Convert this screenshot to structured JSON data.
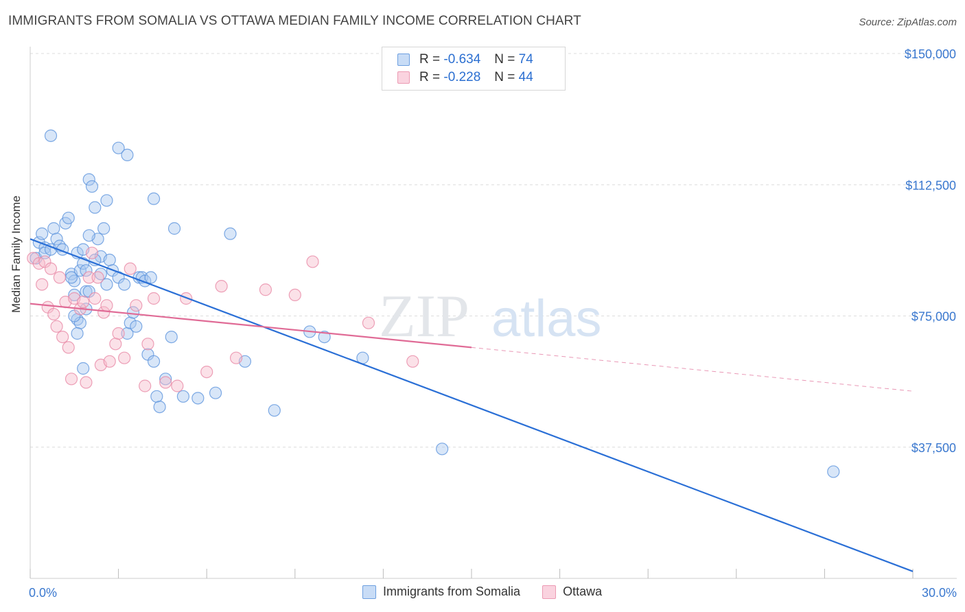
{
  "title": "IMMIGRANTS FROM SOMALIA VS OTTAWA MEDIAN FAMILY INCOME CORRELATION CHART",
  "source": "Source: ZipAtlas.com",
  "watermark": {
    "zip": "ZIP",
    "atlas": "atlas"
  },
  "legend": {
    "rows": [
      {
        "r_label": "R =",
        "r_value": "-0.634",
        "n_label": "N =",
        "n_value": "74",
        "color": "#a9c8f0",
        "stroke": "#5e95dd"
      },
      {
        "r_label": "R =",
        "r_value": "-0.228",
        "n_label": "N =",
        "n_value": "44",
        "color": "#f7bccd",
        "stroke": "#e88aa6"
      }
    ]
  },
  "bottom_legend": {
    "items": [
      {
        "label": "Immigrants from Somalia",
        "color": "#a9c8f0",
        "stroke": "#5e95dd"
      },
      {
        "label": "Ottawa",
        "color": "#f7bccd",
        "stroke": "#e88aa6"
      }
    ]
  },
  "chart_data": {
    "type": "scatter",
    "title": "IMMIGRANTS FROM SOMALIA VS OTTAWA MEDIAN FAMILY INCOME CORRELATION CHART",
    "xlabel": "",
    "ylabel": "Median Family Income",
    "xlim": [
      0,
      30
    ],
    "ylim": [
      0,
      150000
    ],
    "x_tick_labels": [
      "0.0%",
      "30.0%"
    ],
    "y_ticks": [
      37500,
      75000,
      112500,
      150000
    ],
    "y_tick_labels": [
      "$37,500",
      "$75,000",
      "$112,500",
      "$150,000"
    ],
    "grid": true,
    "series": [
      {
        "name": "Immigrants from Somalia",
        "color": "#5e95dd",
        "fill": "#a9c8f0",
        "points": [
          [
            0.2,
            91500
          ],
          [
            0.3,
            96000
          ],
          [
            0.4,
            98500
          ],
          [
            0.5,
            94500
          ],
          [
            0.5,
            93000
          ],
          [
            0.7,
            126500
          ],
          [
            0.7,
            94000
          ],
          [
            0.8,
            100000
          ],
          [
            0.9,
            97000
          ],
          [
            1.0,
            95000
          ],
          [
            1.1,
            94000
          ],
          [
            1.2,
            101500
          ],
          [
            1.3,
            103000
          ],
          [
            1.4,
            87000
          ],
          [
            1.5,
            85000
          ],
          [
            1.5,
            81000
          ],
          [
            1.6,
            93000
          ],
          [
            1.7,
            88000
          ],
          [
            1.8,
            94000
          ],
          [
            1.9,
            82000
          ],
          [
            2.0,
            114000
          ],
          [
            2.1,
            112000
          ],
          [
            2.2,
            106000
          ],
          [
            2.3,
            97000
          ],
          [
            2.4,
            92000
          ],
          [
            2.5,
            100000
          ],
          [
            1.9,
            77000
          ],
          [
            1.4,
            86000
          ],
          [
            1.6,
            74000
          ],
          [
            1.8,
            60000
          ],
          [
            1.7,
            73000
          ],
          [
            1.8,
            90000
          ],
          [
            1.9,
            88000
          ],
          [
            2.0,
            98000
          ],
          [
            2.0,
            82000
          ],
          [
            1.5,
            75000
          ],
          [
            1.6,
            70000
          ],
          [
            2.2,
            91000
          ],
          [
            2.4,
            87000
          ],
          [
            2.6,
            84000
          ],
          [
            2.7,
            91000
          ],
          [
            2.8,
            88000
          ],
          [
            3.0,
            86000
          ],
          [
            3.2,
            84000
          ],
          [
            3.3,
            70000
          ],
          [
            3.4,
            73000
          ],
          [
            3.5,
            76000
          ],
          [
            3.6,
            72000
          ],
          [
            3.7,
            86000
          ],
          [
            3.8,
            86000
          ],
          [
            3.9,
            85000
          ],
          [
            4.0,
            64000
          ],
          [
            4.1,
            86000
          ],
          [
            4.2,
            62000
          ],
          [
            4.3,
            52000
          ],
          [
            4.4,
            49000
          ],
          [
            4.6,
            57000
          ],
          [
            4.8,
            69000
          ],
          [
            5.2,
            52000
          ],
          [
            5.7,
            51500
          ],
          [
            6.3,
            53000
          ],
          [
            6.8,
            98500
          ],
          [
            7.3,
            62000
          ],
          [
            8.3,
            48000
          ],
          [
            9.5,
            70500
          ],
          [
            10.0,
            69000
          ],
          [
            11.3,
            63000
          ],
          [
            14.0,
            37000
          ],
          [
            27.3,
            30500
          ],
          [
            2.6,
            108000
          ],
          [
            3.0,
            123000
          ],
          [
            3.3,
            121000
          ],
          [
            4.2,
            108500
          ],
          [
            4.9,
            100000
          ]
        ]
      },
      {
        "name": "Ottawa",
        "color": "#e88aa6",
        "fill": "#f7bccd",
        "points": [
          [
            0.1,
            91500
          ],
          [
            0.3,
            90000
          ],
          [
            0.4,
            84000
          ],
          [
            0.5,
            90500
          ],
          [
            0.6,
            77500
          ],
          [
            0.7,
            88500
          ],
          [
            0.8,
            75500
          ],
          [
            0.9,
            72000
          ],
          [
            1.0,
            86000
          ],
          [
            1.1,
            69000
          ],
          [
            1.2,
            79000
          ],
          [
            1.3,
            66000
          ],
          [
            1.4,
            57000
          ],
          [
            1.5,
            80000
          ],
          [
            1.7,
            77000
          ],
          [
            1.8,
            79000
          ],
          [
            1.9,
            56000
          ],
          [
            2.0,
            86000
          ],
          [
            2.1,
            93000
          ],
          [
            2.2,
            80000
          ],
          [
            2.3,
            86000
          ],
          [
            2.4,
            61000
          ],
          [
            2.5,
            76000
          ],
          [
            2.6,
            78000
          ],
          [
            2.7,
            62000
          ],
          [
            2.9,
            67000
          ],
          [
            3.0,
            70000
          ],
          [
            3.2,
            63000
          ],
          [
            3.4,
            88500
          ],
          [
            3.6,
            78000
          ],
          [
            4.0,
            67000
          ],
          [
            4.2,
            80000
          ],
          [
            4.6,
            56000
          ],
          [
            5.0,
            55000
          ],
          [
            5.3,
            80000
          ],
          [
            6.0,
            59000
          ],
          [
            6.5,
            83500
          ],
          [
            7.0,
            63000
          ],
          [
            8.0,
            82500
          ],
          [
            9.0,
            81000
          ],
          [
            9.6,
            90500
          ],
          [
            11.5,
            73000
          ],
          [
            13.0,
            62000
          ],
          [
            3.9,
            55000
          ]
        ]
      }
    ],
    "trend_lines": [
      {
        "series": "Immigrants from Somalia",
        "x": [
          0,
          30
        ],
        "y": [
          97000,
          2000
        ],
        "style": "solid"
      },
      {
        "series": "Ottawa",
        "x": [
          0,
          15
        ],
        "y": [
          78500,
          66000
        ],
        "style": "solid"
      },
      {
        "series": "Ottawa",
        "x": [
          15,
          30
        ],
        "y": [
          66000,
          53500
        ],
        "style": "dashed"
      }
    ]
  }
}
